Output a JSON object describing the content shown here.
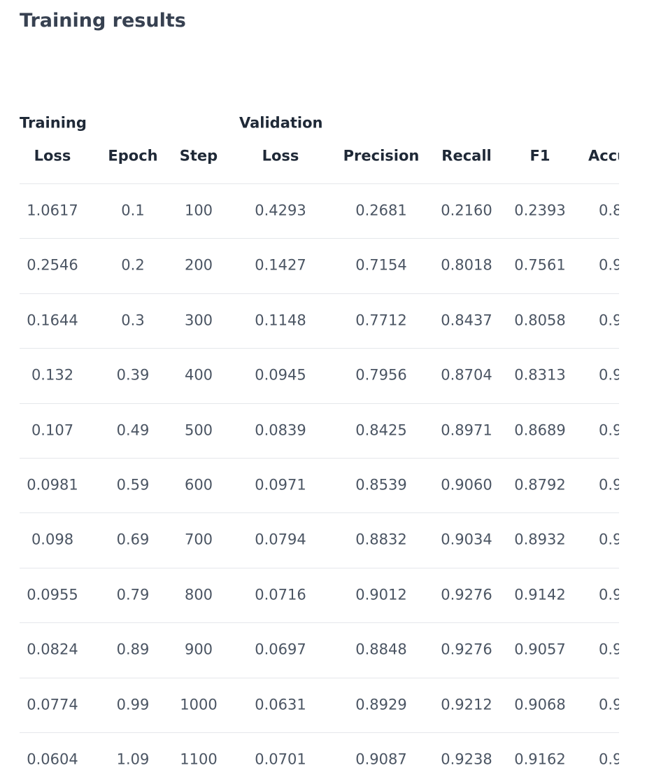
{
  "header": {
    "title": "Training results"
  },
  "table": {
    "columns": [
      [
        "Training",
        "Loss"
      ],
      [
        "Epoch"
      ],
      [
        "Step"
      ],
      [
        "Validation",
        "Loss"
      ],
      [
        "Precision"
      ],
      [
        "Recall"
      ],
      [
        "F1"
      ],
      [
        "Accu"
      ]
    ],
    "rows": [
      [
        "1.0617",
        "0.1",
        "100",
        "0.4293",
        "0.2681",
        "0.2160",
        "0.2393",
        "0.8"
      ],
      [
        "0.2546",
        "0.2",
        "200",
        "0.1427",
        "0.7154",
        "0.8018",
        "0.7561",
        "0.9"
      ],
      [
        "0.1644",
        "0.3",
        "300",
        "0.1148",
        "0.7712",
        "0.8437",
        "0.8058",
        "0.9"
      ],
      [
        "0.132",
        "0.39",
        "400",
        "0.0945",
        "0.7956",
        "0.8704",
        "0.8313",
        "0.9"
      ],
      [
        "0.107",
        "0.49",
        "500",
        "0.0839",
        "0.8425",
        "0.8971",
        "0.8689",
        "0.9"
      ],
      [
        "0.0981",
        "0.59",
        "600",
        "0.0971",
        "0.8539",
        "0.9060",
        "0.8792",
        "0.9"
      ],
      [
        "0.098",
        "0.69",
        "700",
        "0.0794",
        "0.8832",
        "0.9034",
        "0.8932",
        "0.9"
      ],
      [
        "0.0955",
        "0.79",
        "800",
        "0.0716",
        "0.9012",
        "0.9276",
        "0.9142",
        "0.9"
      ],
      [
        "0.0824",
        "0.89",
        "900",
        "0.0697",
        "0.8848",
        "0.9276",
        "0.9057",
        "0.9"
      ],
      [
        "0.0774",
        "0.99",
        "1000",
        "0.0631",
        "0.8929",
        "0.9212",
        "0.9068",
        "0.9"
      ],
      [
        "0.0604",
        "1.09",
        "1100",
        "0.0701",
        "0.9087",
        "0.9238",
        "0.9162",
        "0.9"
      ]
    ]
  }
}
